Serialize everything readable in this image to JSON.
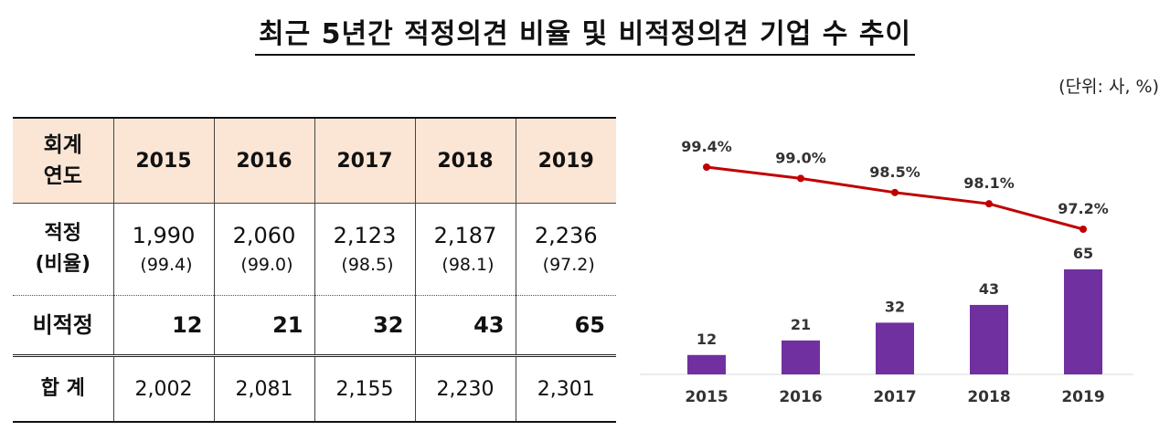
{
  "title": "최근 5년간 적정의견 비율 및 비적정의견 기업 수 추이",
  "unit_note": "(단위: 사, %)",
  "table": {
    "header_label_line1": "회계",
    "header_label_line2": "연도",
    "years": [
      "2015",
      "2016",
      "2017",
      "2018",
      "2019"
    ],
    "rows": {
      "normal": {
        "label_line1": "적정",
        "label_line2": "(비율)",
        "counts": [
          "1,990",
          "2,060",
          "2,123",
          "2,187",
          "2,236"
        ],
        "ratios": [
          "(99.4)",
          "(99.0)",
          "(98.5)",
          "(98.1)",
          "(97.2)"
        ]
      },
      "abnormal": {
        "label": "비적정",
        "counts": [
          "12",
          "21",
          "32",
          "43",
          "65"
        ]
      },
      "total": {
        "label": "합 계",
        "counts": [
          "2,002",
          "2,081",
          "2,155",
          "2,230",
          "2,301"
        ]
      }
    }
  },
  "chart_data": {
    "type": "bar",
    "categories": [
      "2015",
      "2016",
      "2017",
      "2018",
      "2019"
    ],
    "series": [
      {
        "type": "bar",
        "values": [
          12,
          21,
          32,
          43,
          65
        ],
        "labels": [
          "12",
          "21",
          "32",
          "43",
          "65"
        ],
        "color": "#7030a0"
      },
      {
        "type": "line",
        "values": [
          99.4,
          99.0,
          98.5,
          98.1,
          97.2
        ],
        "labels": [
          "99.4%",
          "99.0%",
          "98.5%",
          "98.1%",
          "97.2%"
        ],
        "color": "#c00000"
      }
    ],
    "legend": "none",
    "grid": false
  }
}
